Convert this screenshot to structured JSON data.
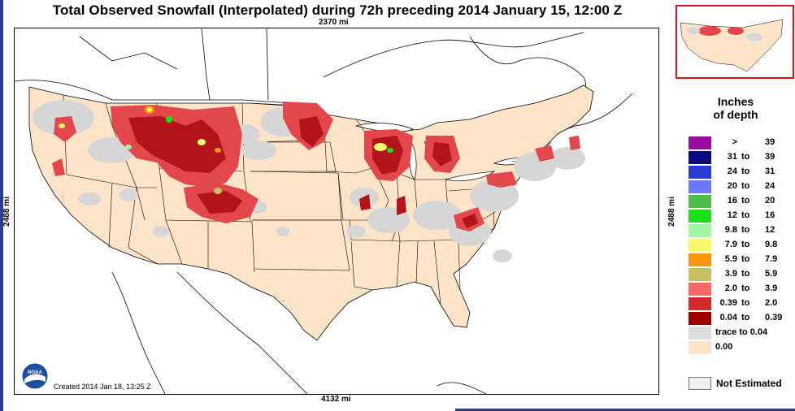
{
  "title": "Total Observed Snowfall (Interpolated) during 72h preceding 2014 January 15, 12:00 Z",
  "dimensions": {
    "top": "2370 mi",
    "bottom": "4132 mi",
    "left": "2488 mi",
    "right": "2488 mi"
  },
  "credit": "Created 2014 Jan 18, 13:25 Z",
  "logo_text": "NOAA",
  "legend": {
    "title_line1": "Inches",
    "title_line2": "of depth",
    "rows": [
      {
        "lo": ">",
        "to": "",
        "hi": "39",
        "color": "#9a0aa0"
      },
      {
        "lo": "31",
        "to": "to",
        "hi": "39",
        "color": "#0a0a80"
      },
      {
        "lo": "24",
        "to": "to",
        "hi": "31",
        "color": "#2a3ad0"
      },
      {
        "lo": "20",
        "to": "to",
        "hi": "24",
        "color": "#6a78ff"
      },
      {
        "lo": "16",
        "to": "to",
        "hi": "20",
        "color": "#4cbc4c"
      },
      {
        "lo": "12",
        "to": "to",
        "hi": "16",
        "color": "#1ce01c"
      },
      {
        "lo": "9.8",
        "to": "to",
        "hi": "12",
        "color": "#a0f8a0"
      },
      {
        "lo": "7.9",
        "to": "to",
        "hi": "9.8",
        "color": "#f8f86a"
      },
      {
        "lo": "5.9",
        "to": "to",
        "hi": "7.9",
        "color": "#f8960a"
      },
      {
        "lo": "3.9",
        "to": "to",
        "hi": "5.9",
        "color": "#c8c060"
      },
      {
        "lo": "2.0",
        "to": "to",
        "hi": "3.9",
        "color": "#f86a6a"
      },
      {
        "lo": "0.39",
        "to": "to",
        "hi": "2.0",
        "color": "#d02a2a"
      },
      {
        "lo": "0.04",
        "to": "to",
        "hi": "0.39",
        "color": "#a00000"
      },
      {
        "single": "trace  to  0.04",
        "color": "#dcdcdc"
      },
      {
        "single": "0.00",
        "color": "#fde4c8"
      }
    ],
    "not_estimated": "Not Estimated"
  },
  "colors": {
    "land": "#fde4c8",
    "trace": "#d6d6d6",
    "light_red": "#e2474b",
    "dark_red": "#b3141c",
    "frame_accent": "#2e3b8f",
    "inset_border": "#d01a1a"
  }
}
